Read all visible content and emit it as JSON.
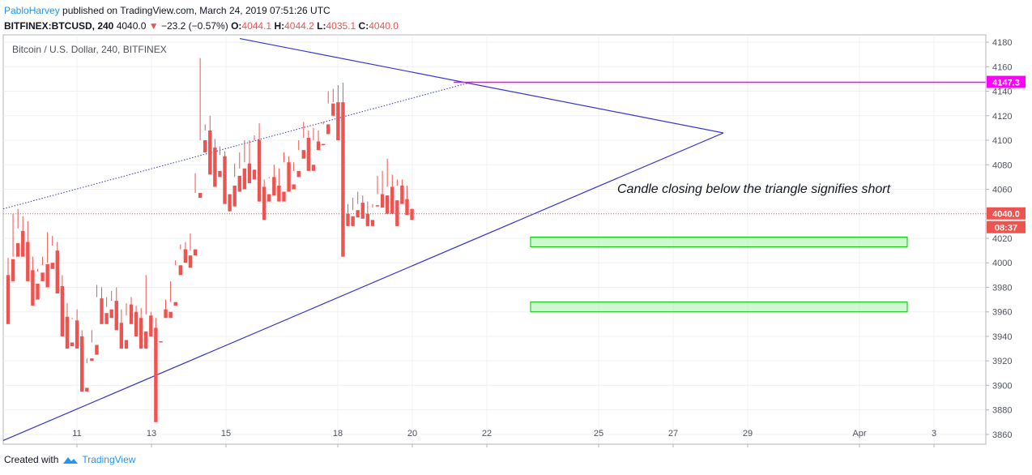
{
  "header": {
    "author": "PabloHarvey",
    "published_text": "published on TradingView.com, March 24, 2019 07:51:26 UTC",
    "symbol": "BITFINEX:BTCUSD, 240",
    "last": "4040.0",
    "change": "−23.2 (−0.57%)",
    "o_label": "O:",
    "o": "4044.1",
    "h_label": "H:",
    "h": "4044.2",
    "l_label": "L:",
    "l": "4035.1",
    "c_label": "C:",
    "c": "4040.0"
  },
  "footer": {
    "created_with": "Created with",
    "brand": "TradingView"
  },
  "chart_data": {
    "type": "candlestick",
    "title": "Bitcoin / U.S. Dollar, 240, BITFINEX",
    "annotation": "Candle closing below the triangle signifies short",
    "ylim": [
      3852,
      4186
    ],
    "y_ticks": [
      3860,
      3880,
      3900,
      3920,
      3940,
      3960,
      3980,
      4000,
      4020,
      4040,
      4060,
      4080,
      4100,
      4120,
      4140,
      4160,
      4180
    ],
    "x_ticks": [
      "11",
      "13",
      "15",
      "18",
      "20",
      "22",
      "25",
      "27",
      "29",
      "Apr",
      "3"
    ],
    "price_label": "4040.0",
    "countdown_label": "08:37",
    "level_label": "4147.3",
    "level": 4147.3,
    "up_color": "#26a69a",
    "down_color": "#ef5350",
    "line_color": "#3535d0",
    "level_color": "#ff00ff",
    "zone_color": "#00c800",
    "zones": [
      {
        "bottom": 4013,
        "top": 4021,
        "x_from": "Mar 23",
        "x_to": "Apr 2"
      },
      {
        "bottom": 3960,
        "top": 3968,
        "x_from": "Mar 23",
        "x_to": "Apr 2"
      }
    ],
    "triangle_upper": [
      {
        "x": "Mar 16",
        "y": 4183
      },
      {
        "x": "Mar 28",
        "y": 4106
      }
    ],
    "triangle_lower": [
      {
        "x": "Mar 9",
        "y": 3855
      },
      {
        "x": "Mar 28",
        "y": 4106
      }
    ],
    "dotted_trend": [
      {
        "x": "Mar 9",
        "y": 4044
      },
      {
        "x": "Mar 21",
        "y": 4148
      }
    ],
    "candles": [
      [
        3990,
        4004,
        3960,
        3950
      ],
      [
        4003,
        4040,
        4005,
        3985
      ],
      [
        4016,
        4044,
        4028,
        4005
      ],
      [
        4026,
        4038,
        4018,
        4005
      ],
      [
        4017,
        4034,
        3994,
        3985
      ],
      [
        3994,
        4005,
        3982,
        3965
      ],
      [
        3983,
        3995,
        3993,
        3970
      ],
      [
        3992,
        4005,
        3998,
        3985
      ],
      [
        3999,
        4025,
        4000,
        3980
      ],
      [
        4000,
        4022,
        4014,
        3995
      ],
      [
        4010,
        4017,
        3981,
        3975
      ],
      [
        3981,
        3990,
        3956,
        3940
      ],
      [
        3956,
        3967,
        3936,
        3930
      ],
      [
        3935,
        3955,
        3954,
        3932
      ],
      [
        3953,
        3962,
        3940,
        3930
      ],
      [
        3940,
        3945,
        3898,
        3895
      ],
      [
        3898,
        3918,
        3922,
        3895
      ],
      [
        3922,
        3945,
        3935,
        3920
      ],
      [
        3933,
        3982,
        3972,
        3925
      ],
      [
        3971,
        3980,
        3959,
        3950
      ],
      [
        3959,
        3972,
        3964,
        3950
      ],
      [
        3962,
        3977,
        3969,
        3955
      ],
      [
        3969,
        3980,
        3952,
        3945
      ],
      [
        3951,
        3962,
        3937,
        3930
      ],
      [
        3937,
        3957,
        3967,
        3930
      ],
      [
        3966,
        3972,
        3960,
        3950
      ],
      [
        3960,
        3965,
        3954,
        3940
      ],
      [
        3955,
        3963,
        3943,
        3930
      ],
      [
        3944,
        3990,
        3958,
        3930
      ],
      [
        3957,
        3960,
        3947,
        3940
      ],
      [
        3947,
        3955,
        3936,
        3870
      ],
      [
        3936,
        3962,
        3962,
        3935
      ],
      [
        3962,
        3970,
        3960,
        3955
      ],
      [
        3960,
        3985,
        3968,
        3955
      ],
      [
        3968,
        4002,
        3998,
        3965
      ],
      [
        3998,
        4015,
        4011,
        3990
      ],
      [
        4011,
        4017,
        4006,
        4000
      ],
      [
        4006,
        4024,
        4010,
        3996
      ],
      [
        4011,
        4073,
        4057,
        4006
      ],
      [
        4057,
        4167,
        4100,
        4053
      ],
      [
        4100,
        4113,
        4108,
        4090
      ],
      [
        4108,
        4120,
        4093,
        4072
      ],
      [
        4094,
        4101,
        4075,
        4062
      ],
      [
        4075,
        4095,
        4088,
        4070
      ],
      [
        4087,
        4091,
        4056,
        4048
      ],
      [
        4056,
        4063,
        4063,
        4042
      ],
      [
        4063,
        4081,
        4070,
        4046
      ],
      [
        4071,
        4090,
        4077,
        4058
      ],
      [
        4077,
        4100,
        4082,
        4060
      ],
      [
        4081,
        4100,
        4076,
        4065
      ],
      [
        4076,
        4104,
        4100,
        4068
      ],
      [
        4100,
        4114,
        4062,
        4050
      ],
      [
        4062,
        4068,
        4057,
        4035
      ],
      [
        4056,
        4069,
        4070,
        4050
      ],
      [
        4070,
        4080,
        4064,
        4055
      ],
      [
        4063,
        4077,
        4058,
        4050
      ],
      [
        4058,
        4090,
        4082,
        4050
      ],
      [
        4082,
        4087,
        4062,
        4058
      ],
      [
        4064,
        4082,
        4075,
        4060
      ],
      [
        4075,
        4100,
        4092,
        4070
      ],
      [
        4092,
        4115,
        4102,
        4085
      ],
      [
        4102,
        4108,
        4080,
        4075
      ],
      [
        4080,
        4110,
        4100,
        4075
      ],
      [
        4099,
        4108,
        4097,
        4092
      ],
      [
        4097,
        4115,
        4113,
        4096
      ],
      [
        4113,
        4140,
        4130,
        4105
      ],
      [
        4130,
        4142,
        4131,
        4120
      ],
      [
        4131,
        4145,
        4128,
        4100
      ],
      [
        4131,
        4147,
        4043,
        4005
      ],
      [
        4040,
        4048,
        4038,
        4030
      ],
      [
        4038,
        4053,
        4043,
        4030
      ],
      [
        4043,
        4058,
        4048,
        4037
      ],
      [
        4049,
        4055,
        4041,
        4036
      ],
      [
        4040,
        4050,
        4035,
        4030
      ],
      [
        4035,
        4045,
        4048,
        4030
      ],
      [
        4047,
        4071,
        4056,
        4046
      ],
      [
        4056,
        4075,
        4054,
        4045
      ],
      [
        4055,
        4085,
        4062,
        4040
      ],
      [
        4062,
        4072,
        4050,
        4040
      ],
      [
        4051,
        4068,
        4063,
        4030
      ],
      [
        4063,
        4068,
        4052,
        4048
      ],
      [
        4052,
        4063,
        4044,
        4039
      ],
      [
        4044,
        4044,
        4040,
        4035
      ]
    ]
  }
}
